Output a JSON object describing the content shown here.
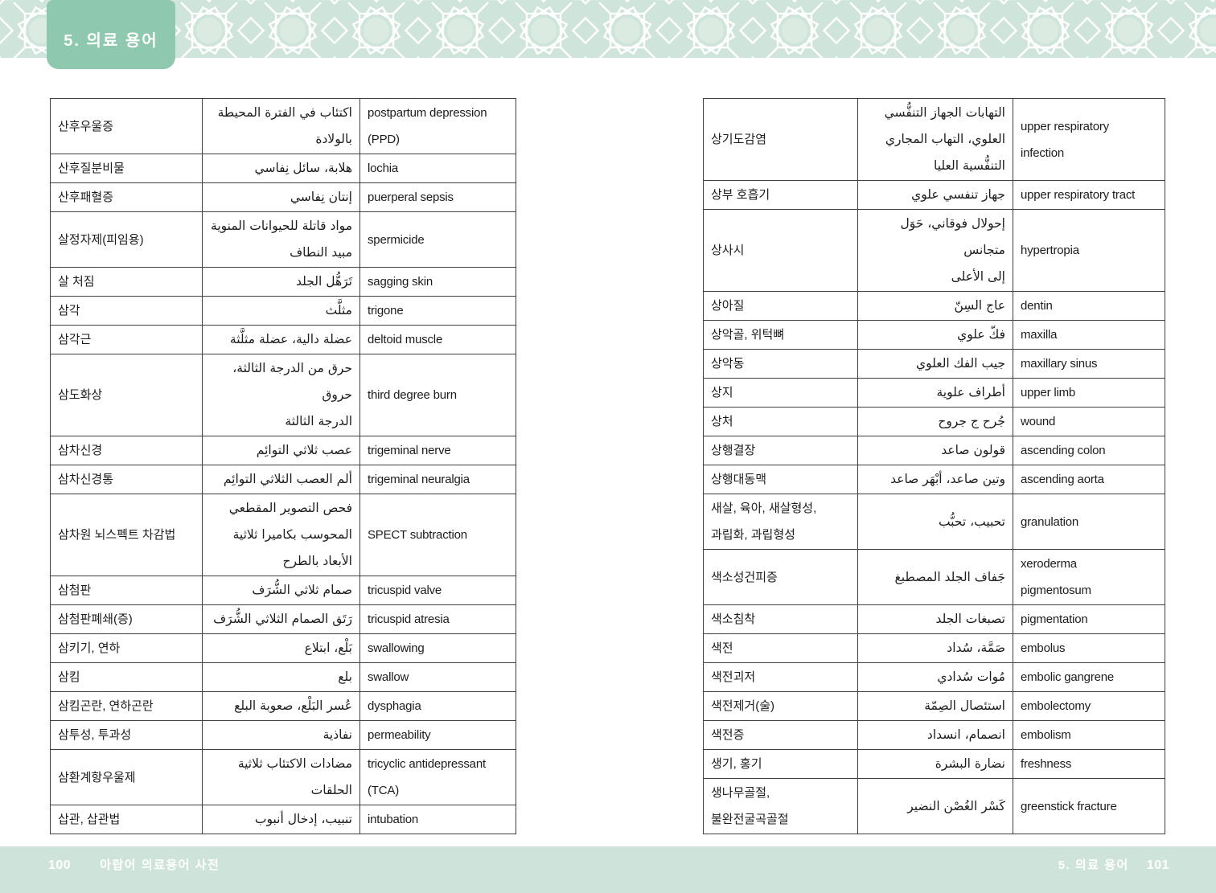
{
  "header": {
    "tab_label": "5. 의료 용어"
  },
  "footer": {
    "left_page_number": "100",
    "left_book_title": "아랍어 의료용어 사전",
    "right_section_title": "5. 의료 용어",
    "right_page_number": "101"
  },
  "colors": {
    "tab_accent": "#8ec8ae",
    "band_background": "#cfe4da",
    "pattern_line": "#ffffff",
    "footer_background": "#cee4da",
    "table_border": "#3f3f3f"
  },
  "left_table": {
    "columns": [
      "korean",
      "arabic",
      "english"
    ],
    "rows": [
      {
        "ko": "산후우울증",
        "ar": "اكتئاب في الفترة المحيطة\nبالولادة",
        "en": "postpartum depression\n(PPD)"
      },
      {
        "ko": "산후질분비물",
        "ar": "هلابة، سائل نِفاسي",
        "en": "lochia"
      },
      {
        "ko": "산후패혈증",
        "ar": "إنتان نِفاسي",
        "en": "puerperal sepsis"
      },
      {
        "ko": "살정자제(피임용)",
        "ar": "مواد قاتلة للحيوانات المنوية\nمبيد النطاف",
        "en": "spermicide"
      },
      {
        "ko": "살 처짐",
        "ar": "تَرَهُّل الجلد",
        "en": "sagging skin"
      },
      {
        "ko": "삼각",
        "ar": "مثلَّث",
        "en": "trigone"
      },
      {
        "ko": "삼각근",
        "ar": "عضلة دالية، عضلة مثلَّثة",
        "en": "deltoid muscle"
      },
      {
        "ko": "삼도화상",
        "ar": "حرق من الدرجة الثالثة، حروق\nالدرجة الثالثة",
        "en": "third degree burn"
      },
      {
        "ko": "삼차신경",
        "ar": "عصب ثلاثي التوائِم",
        "en": "trigeminal nerve"
      },
      {
        "ko": "삼차신경통",
        "ar": "ألم العصب الثلاثي التوائِم",
        "en": "trigeminal neuralgia"
      },
      {
        "ko": "삼차원 뇌스펙트 차감법",
        "ar": "فحص التصوير المقطعي\nالمحوسب بكاميرا ثلاثية\nالأبعاد بالطرح",
        "en": "SPECT subtraction"
      },
      {
        "ko": "삼첨판",
        "ar": "صمام ثلاثي الشُّرَف",
        "en": "tricuspid valve"
      },
      {
        "ko": "삼첨판폐쇄(증)",
        "ar": "رَتَق الصمام الثلاثي الشُّرَف",
        "en": "tricuspid atresia"
      },
      {
        "ko": "삼키기, 연하",
        "ar": "بَلْع، ابتلاع",
        "en": "swallowing"
      },
      {
        "ko": "삼킴",
        "ar": "بلع",
        "en": "swallow"
      },
      {
        "ko": "삼킴곤란, 연하곤란",
        "ar": "عُسر البَلْع، صعوبة البلع",
        "en": "dysphagia"
      },
      {
        "ko": "삼투성, 투과성",
        "ar": "نفاذية",
        "en": "permeability"
      },
      {
        "ko": "삼환계항우울제",
        "ar": "مضادات الاكتئاب ثلاثية\nالحلقات",
        "en": "tricyclic antidepressant\n(TCA)"
      },
      {
        "ko": "삽관, 삽관법",
        "ar": "تنبيب، إدخال أنبوب",
        "en": "intubation"
      }
    ]
  },
  "right_table": {
    "columns": [
      "korean",
      "arabic",
      "english"
    ],
    "rows": [
      {
        "ko": "상기도감염",
        "ar": "التهابات الجهاز التنفُّسي\nالعلوي، التهاب المجاري\nالتنفُّسية العليا",
        "en": "upper respiratory\ninfection"
      },
      {
        "ko": "상부 호흡기",
        "ar": "جهاز تنفسي علوي",
        "en": "upper respiratory tract"
      },
      {
        "ko": "상사시",
        "ar": "إحولال فوقاني، حَوَل متجانس\nإلى الأعلى",
        "en": "hypertropia"
      },
      {
        "ko": "상아질",
        "ar": "عاج السِنّ",
        "en": "dentin"
      },
      {
        "ko": "상악골, 위턱뼈",
        "ar": "فكّ علوي",
        "en": "maxilla"
      },
      {
        "ko": "상악동",
        "ar": "جيب الفك العلوي",
        "en": "maxillary sinus"
      },
      {
        "ko": "상지",
        "ar": "أطراف علوية",
        "en": "upper limb"
      },
      {
        "ko": "상처",
        "ar": "جُرح ج جروح",
        "en": "wound"
      },
      {
        "ko": "상행결장",
        "ar": "قولون صاعد",
        "en": "ascending colon"
      },
      {
        "ko": "상행대동맥",
        "ar": "وتين صاعد، أبْهَر صاعد",
        "en": "ascending aorta"
      },
      {
        "ko": "새살, 육아, 새살형성,\n과립화, 과립형성",
        "ar": "تحبيب، تحبُّب",
        "en": "granulation"
      },
      {
        "ko": "색소성건피증",
        "ar": "جَفاف الجلد المصطبغ",
        "en": "xeroderma\npigmentosum"
      },
      {
        "ko": "색소침착",
        "ar": "تصبغات الجلد",
        "en": "pigmentation"
      },
      {
        "ko": "색전",
        "ar": "صَمَّة، سُداد",
        "en": "embolus"
      },
      {
        "ko": "색전괴저",
        "ar": "مُوات سُدادي",
        "en": "embolic gangrene"
      },
      {
        "ko": "색전제거(술)",
        "ar": "استئصال الصِمّة",
        "en": "embolectomy"
      },
      {
        "ko": "색전증",
        "ar": "انصمام، انسداد",
        "en": "embolism"
      },
      {
        "ko": "생기, 홍기",
        "ar": "نضارة البشرة",
        "en": "freshness"
      },
      {
        "ko": "생나무골절,\n불완전굴곡골절",
        "ar": "كَسْر الغُصْن النضير",
        "en": "greenstick fracture"
      }
    ]
  }
}
